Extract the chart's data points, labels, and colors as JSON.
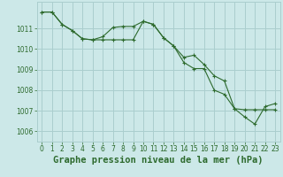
{
  "line1_x": [
    0,
    1,
    2,
    3,
    4,
    5,
    6,
    7,
    8,
    9,
    10,
    11,
    12,
    13,
    14,
    15,
    16,
    17,
    18,
    19,
    20,
    21,
    22,
    23
  ],
  "line1_y": [
    1011.8,
    1011.8,
    1011.2,
    1010.9,
    1010.5,
    1010.45,
    1010.6,
    1011.05,
    1011.1,
    1011.1,
    1011.35,
    1011.2,
    1010.55,
    1010.15,
    1009.6,
    1009.7,
    1009.25,
    1008.7,
    1008.45,
    1007.1,
    1006.7,
    1006.35,
    1007.2,
    1007.35
  ],
  "line2_x": [
    0,
    1,
    2,
    3,
    4,
    5,
    6,
    7,
    8,
    9,
    10,
    11,
    12,
    13,
    14,
    15,
    16,
    17,
    18,
    19,
    20,
    21,
    22,
    23
  ],
  "line2_y": [
    1011.8,
    1011.8,
    1011.2,
    1010.9,
    1010.5,
    1010.45,
    1010.45,
    1010.45,
    1010.45,
    1010.45,
    1011.35,
    1011.2,
    1010.55,
    1010.15,
    1009.35,
    1009.05,
    1009.05,
    1008.0,
    1007.8,
    1007.1,
    1007.05,
    1007.05,
    1007.05,
    1007.05
  ],
  "line_color": "#2d6a2d",
  "bg_color": "#cce8e8",
  "grid_color": "#aacece",
  "xlabel": "Graphe pression niveau de la mer (hPa)",
  "ylim": [
    1005.5,
    1012.3
  ],
  "xlim": [
    -0.5,
    23.5
  ],
  "yticks": [
    1006,
    1007,
    1008,
    1009,
    1010,
    1011
  ],
  "xticks": [
    0,
    1,
    2,
    3,
    4,
    5,
    6,
    7,
    8,
    9,
    10,
    11,
    12,
    13,
    14,
    15,
    16,
    17,
    18,
    19,
    20,
    21,
    22,
    23
  ],
  "tick_fontsize": 5.5,
  "xlabel_fontsize": 7.5,
  "marker": "+"
}
